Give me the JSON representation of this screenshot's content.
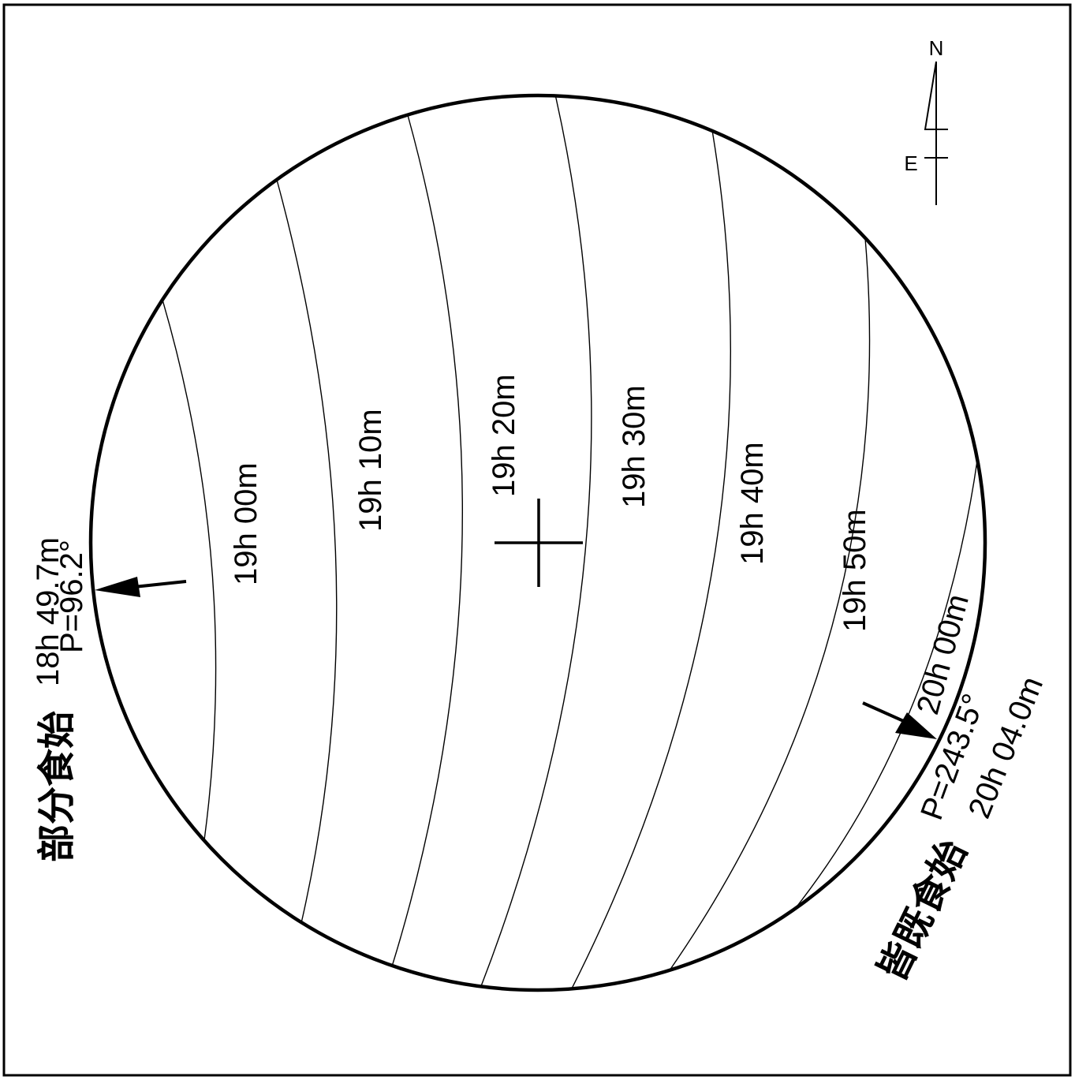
{
  "compass": {
    "north": "N",
    "east": "E"
  },
  "contact_times": [
    {
      "label": "19h 00m"
    },
    {
      "label": "19h 10m"
    },
    {
      "label": "19h 20m"
    },
    {
      "label": "19h 30m"
    },
    {
      "label": "19h 40m"
    },
    {
      "label": "19h 50m"
    },
    {
      "label": "20h 00m"
    }
  ],
  "first_contact": {
    "time": "18h 49.7m",
    "position_angle": "P=96.2°",
    "name": "部分食始"
  },
  "totality_start": {
    "time": "20h 04.0m",
    "position_angle": "P=243.5°",
    "name": "皆既食始"
  },
  "colors": {
    "ink": "#000000",
    "background": "#ffffff"
  }
}
